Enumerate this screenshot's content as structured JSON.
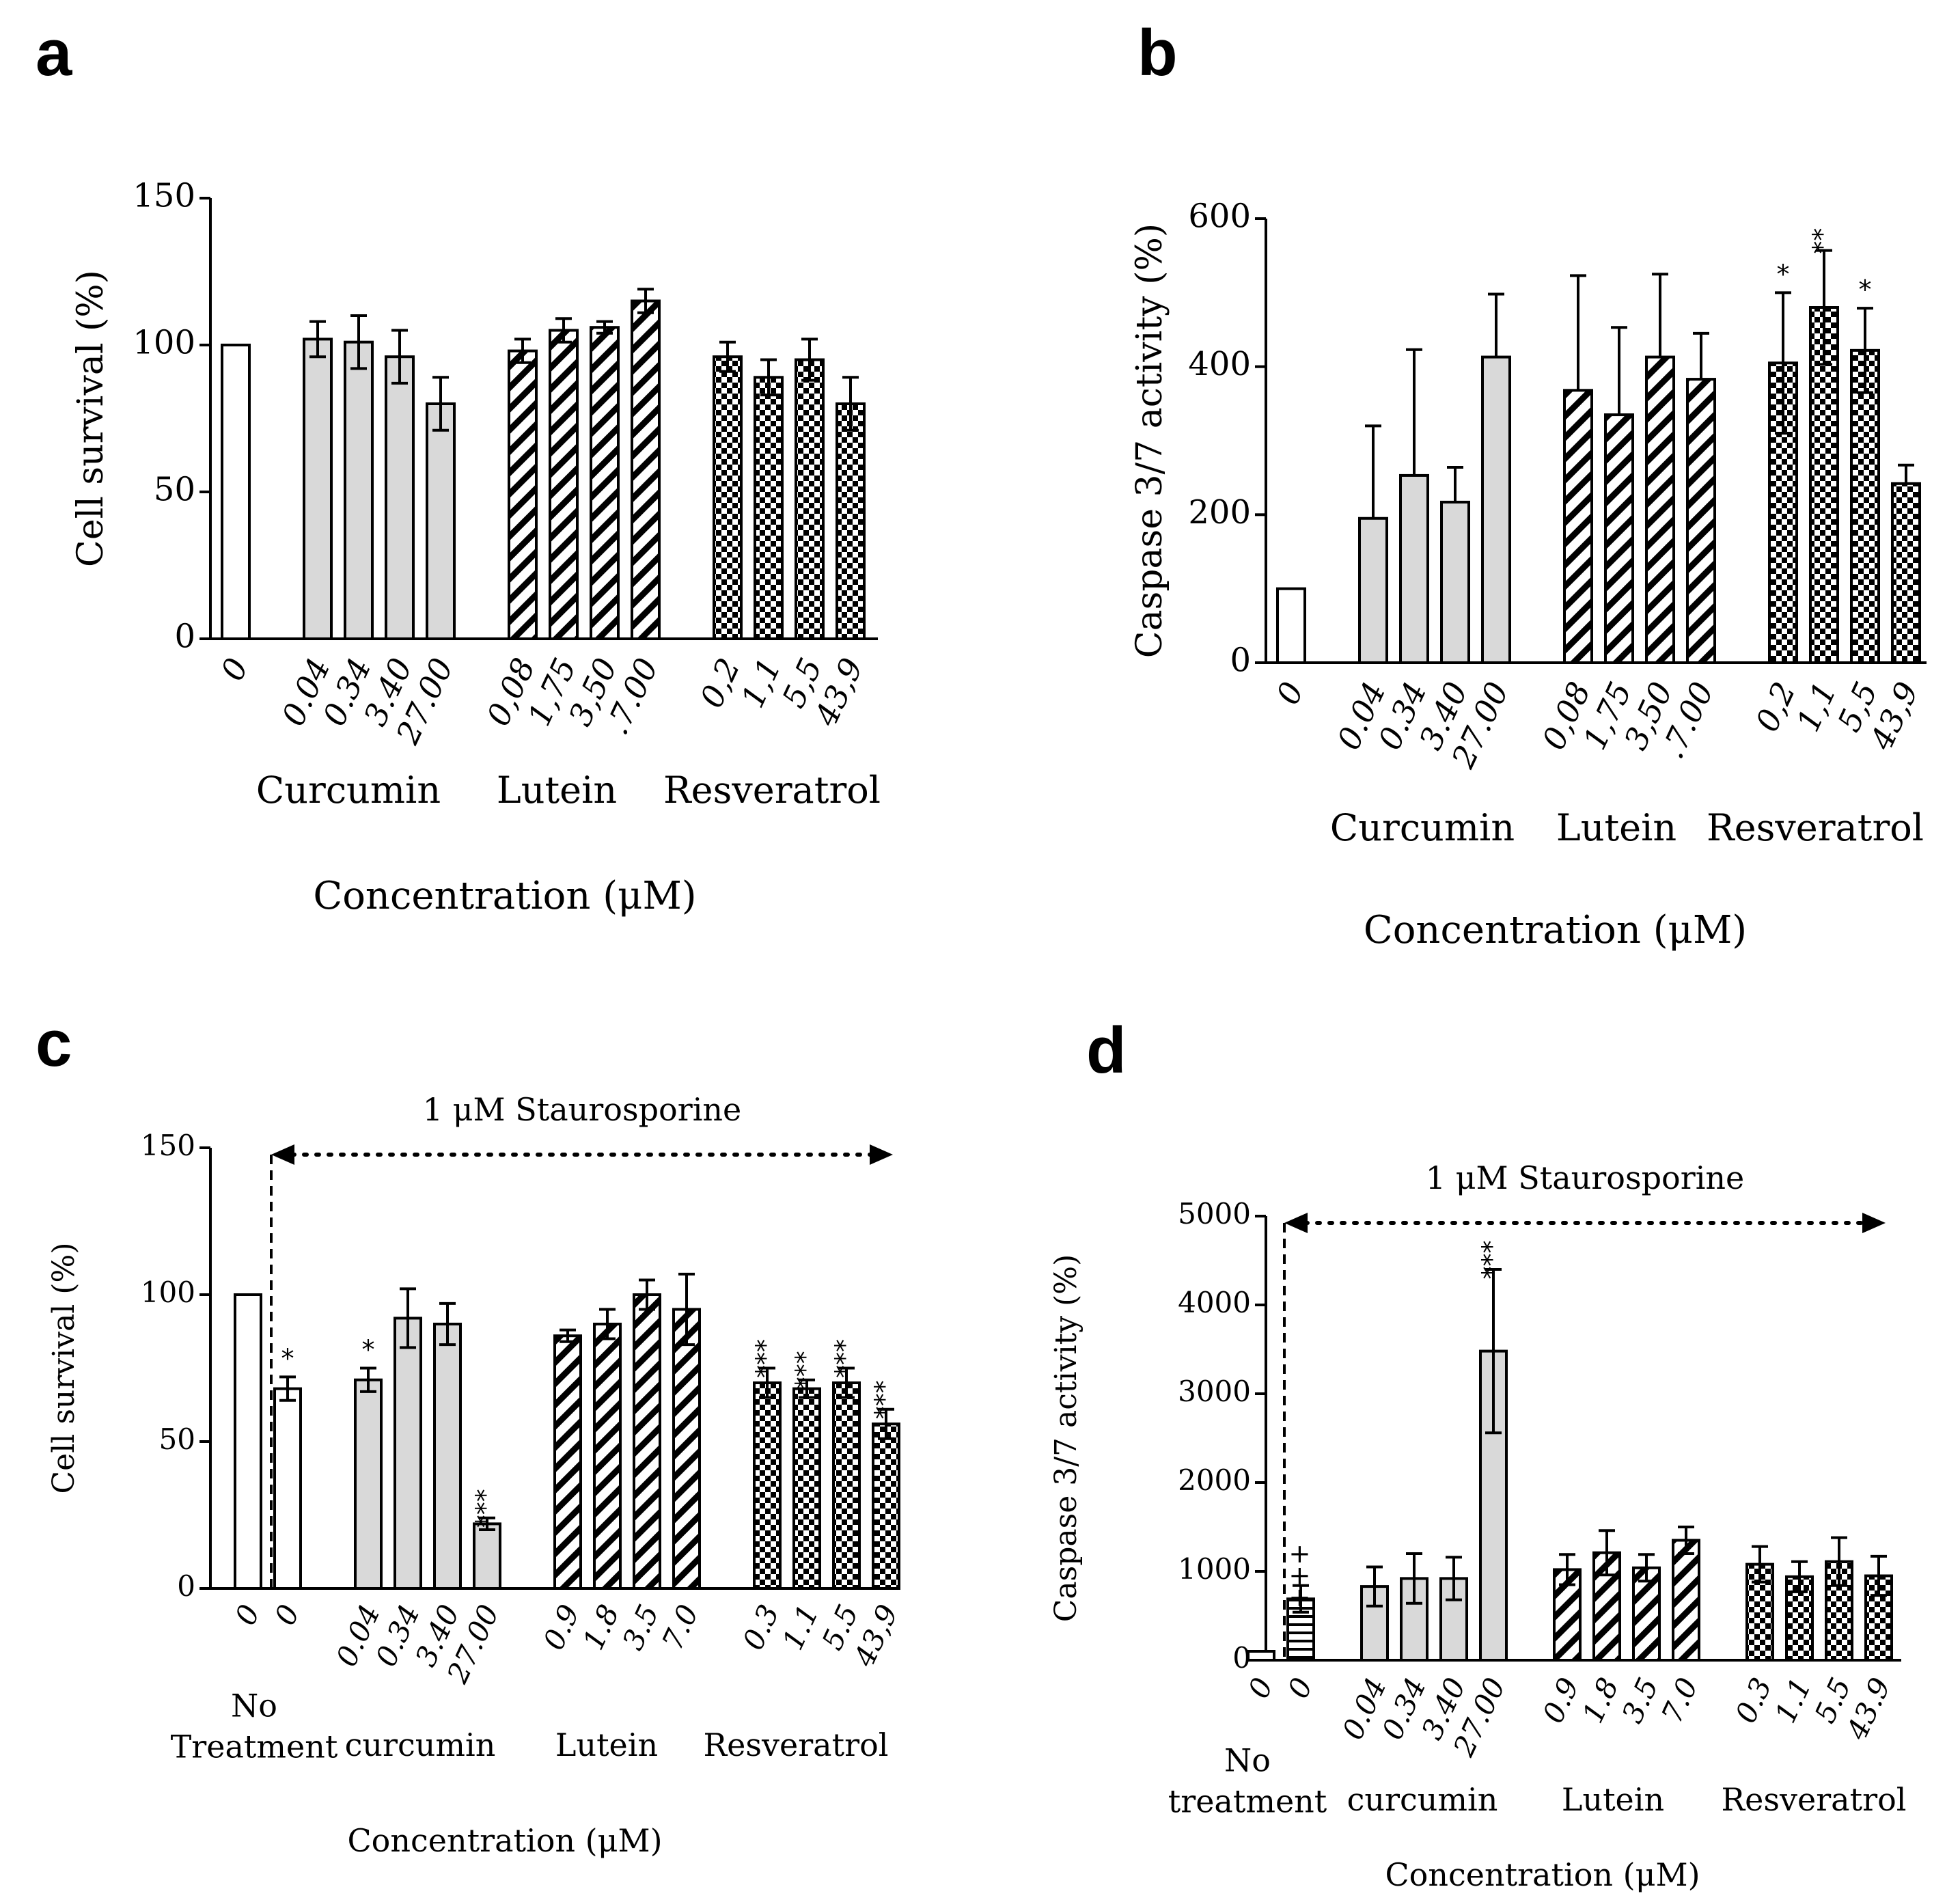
{
  "chart_data": [
    {
      "panel": "a",
      "type": "bar",
      "ylabel": "Cell survival (%)",
      "xlabel": "Concentration (μM)",
      "ylim": [
        0,
        150
      ],
      "yticks": [
        0,
        50,
        100,
        150
      ],
      "groups": [
        {
          "name": "",
          "pattern": "white",
          "bars": [
            {
              "label": "0",
              "value": 100
            }
          ]
        },
        {
          "name": "Curcumin",
          "pattern": "gray",
          "bars": [
            {
              "label": "0.04",
              "value": 102,
              "err": 6
            },
            {
              "label": "0.34",
              "value": 101,
              "err": 9
            },
            {
              "label": "3.40",
              "value": 96,
              "err": 9
            },
            {
              "label": "27.00",
              "value": 80,
              "err": 9
            }
          ]
        },
        {
          "name": "Lutein",
          "pattern": "hatch",
          "bars": [
            {
              "label": "0,08",
              "value": 98,
              "err": 4
            },
            {
              "label": "1,75",
              "value": 105,
              "err": 4
            },
            {
              "label": "3,50",
              "value": 106,
              "err": 2
            },
            {
              "label": ".7.00",
              "value": 115,
              "err": 4
            }
          ]
        },
        {
          "name": "Resveratrol",
          "pattern": "check",
          "bars": [
            {
              "label": "0,2",
              "value": 96,
              "err": 5
            },
            {
              "label": "1,1",
              "value": 89,
              "err": 6
            },
            {
              "label": "5,5",
              "value": 95,
              "err": 7
            },
            {
              "label": "43,9",
              "value": 80,
              "err": 9
            }
          ]
        }
      ]
    },
    {
      "panel": "b",
      "type": "bar",
      "ylabel": "Caspase 3/7 activity (%)",
      "xlabel": "Concentration (μM)",
      "ylim": [
        0,
        600
      ],
      "yticks": [
        0,
        200,
        400,
        600
      ],
      "groups": [
        {
          "name": "",
          "pattern": "white",
          "bars": [
            {
              "label": "0",
              "value": 100
            }
          ]
        },
        {
          "name": "Curcumin",
          "pattern": "gray",
          "bars": [
            {
              "label": "0.04",
              "value": 195,
              "errUp": 125
            },
            {
              "label": "0.34",
              "value": 253,
              "errUp": 170
            },
            {
              "label": "3.40",
              "value": 217,
              "errUp": 47
            },
            {
              "label": "27.00",
              "value": 413,
              "errUp": 85
            }
          ]
        },
        {
          "name": "Lutein",
          "pattern": "hatch",
          "bars": [
            {
              "label": "0,08",
              "value": 368,
              "errUp": 155
            },
            {
              "label": "1,75",
              "value": 335,
              "errUp": 118
            },
            {
              "label": "3,50",
              "value": 413,
              "errUp": 112
            },
            {
              "label": ".7.00",
              "value": 383,
              "errUp": 62
            }
          ]
        },
        {
          "name": "Resveratrol",
          "pattern": "check",
          "bars": [
            {
              "label": "0,2",
              "value": 405,
              "err": 95,
              "sig": "*"
            },
            {
              "label": "1,1",
              "value": 480,
              "err": 77,
              "sig": "**"
            },
            {
              "label": "5,5",
              "value": 422,
              "err": 57,
              "sig": "*"
            },
            {
              "label": "43,9",
              "value": 242,
              "errUp": 25
            }
          ]
        }
      ]
    },
    {
      "panel": "c",
      "type": "bar",
      "ylabel": "Cell survival (%)",
      "xlabel": "Concentration (μM)",
      "ylim": [
        0,
        150
      ],
      "yticks": [
        0,
        50,
        100,
        150
      ],
      "annotation": "1 μM Staurosporine",
      "groups": [
        {
          "name": "No\nTreatment",
          "pattern": "white",
          "bars": [
            {
              "label": "0",
              "value": 100
            },
            {
              "label": "0",
              "value": 68,
              "err": 4,
              "sig": "*"
            }
          ]
        },
        {
          "name": "curcumin",
          "pattern": "gray",
          "bars": [
            {
              "label": "0.04",
              "value": 71,
              "err": 4,
              "sig": "*"
            },
            {
              "label": "0.34",
              "value": 92,
              "err": 10
            },
            {
              "label": "3.40",
              "value": 90,
              "err": 7
            },
            {
              "label": "27.00",
              "value": 22,
              "err": 2,
              "sig": "***"
            }
          ]
        },
        {
          "name": "Lutein",
          "pattern": "hatch",
          "bars": [
            {
              "label": "0.9",
              "value": 86,
              "err": 2
            },
            {
              "label": "1.8",
              "value": 90,
              "err": 5
            },
            {
              "label": "3.5",
              "value": 100,
              "err": 5
            },
            {
              "label": "7.0",
              "value": 95,
              "err": 12
            }
          ]
        },
        {
          "name": "Resveratrol",
          "pattern": "check",
          "bars": [
            {
              "label": "0.3",
              "value": 70,
              "err": 5,
              "sig": "***"
            },
            {
              "label": "1.1",
              "value": 68,
              "err": 3,
              "sig": "***"
            },
            {
              "label": "5.5",
              "value": 70,
              "err": 5,
              "sig": "***"
            },
            {
              "label": "43,9",
              "value": 56,
              "err": 5,
              "sig": "***"
            }
          ]
        }
      ]
    },
    {
      "panel": "d",
      "type": "bar",
      "ylabel": "Caspase 3/7 activity (%)",
      "xlabel": "Concentration (μM)",
      "ylim": [
        0,
        5000
      ],
      "yticks": [
        0,
        1000,
        2000,
        3000,
        4000,
        5000
      ],
      "annotation": "1 μM Staurosporine",
      "groups": [
        {
          "name": "No\ntreatment",
          "pattern": "white",
          "bars": [
            {
              "label": "0",
              "value": 100
            },
            {
              "label": "0",
              "value": 690,
              "err": 150,
              "sig": "+++",
              "pattern": "hlines"
            }
          ]
        },
        {
          "name": "curcumin",
          "pattern": "gray",
          "bars": [
            {
              "label": "0.04",
              "value": 830,
              "err": 220
            },
            {
              "label": "0.34",
              "value": 920,
              "err": 280
            },
            {
              "label": "3.40",
              "value": 920,
              "err": 240
            },
            {
              "label": "27.00",
              "value": 3480,
              "err": 920,
              "sig": "***"
            }
          ]
        },
        {
          "name": "Lutein",
          "pattern": "hatch",
          "bars": [
            {
              "label": "0.9",
              "value": 1020,
              "err": 170
            },
            {
              "label": "1.8",
              "value": 1210,
              "err": 250
            },
            {
              "label": "3.5",
              "value": 1040,
              "err": 150
            },
            {
              "label": "7.0",
              "value": 1350,
              "err": 150
            }
          ]
        },
        {
          "name": "Resveratrol",
          "pattern": "check",
          "bars": [
            {
              "label": "0.3",
              "value": 1080,
              "err": 200
            },
            {
              "label": "1.1",
              "value": 940,
              "err": 170
            },
            {
              "label": "5.5",
              "value": 1110,
              "err": 270
            },
            {
              "label": "43.9",
              "value": 950,
              "err": 220
            }
          ]
        }
      ]
    }
  ]
}
